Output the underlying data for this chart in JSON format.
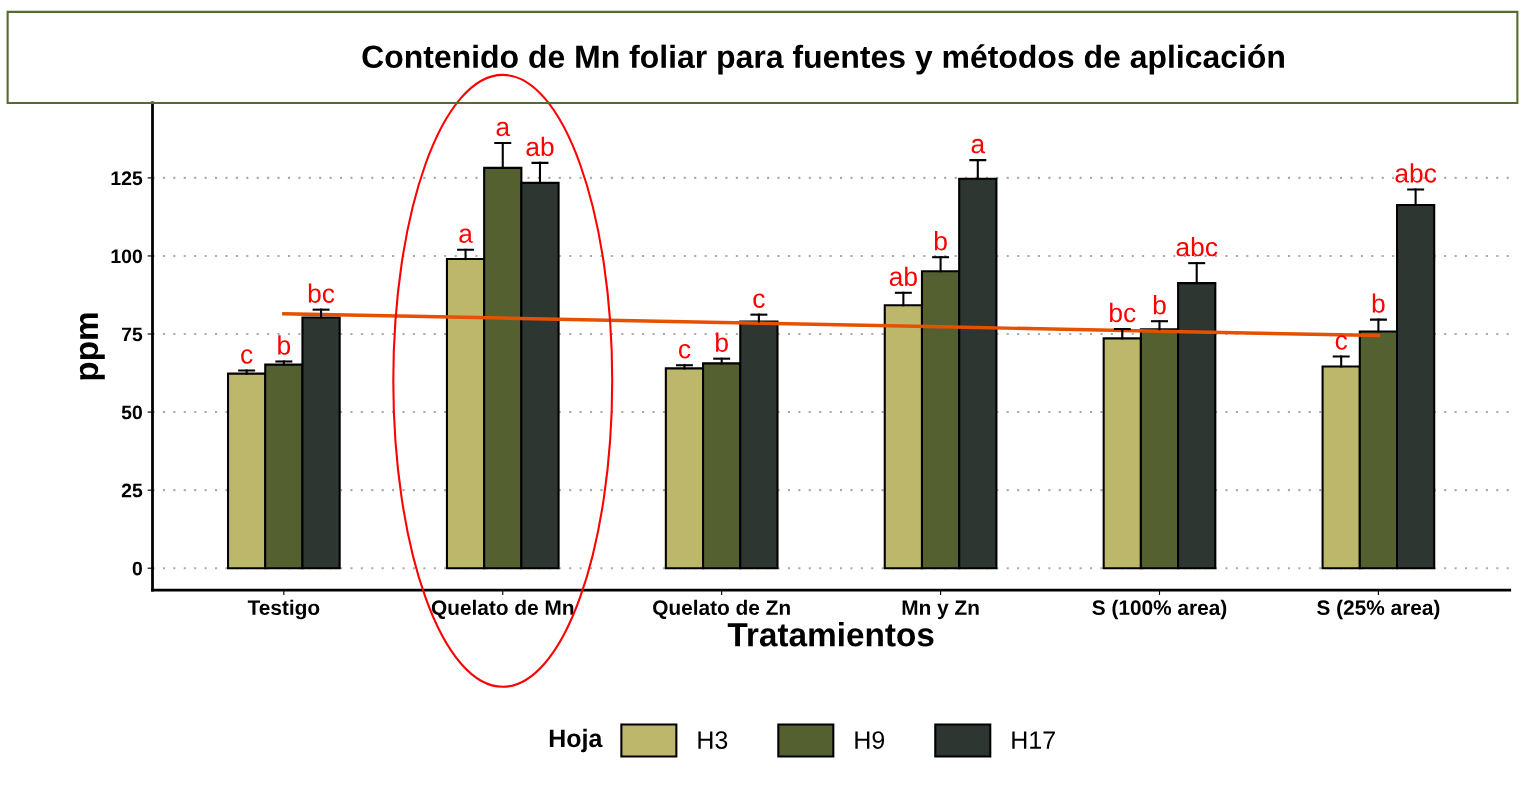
{
  "chart_data": {
    "type": "bar",
    "title": "Contenido de Mn foliar para fuentes y métodos de aplicación",
    "xlabel": "Tratamientos",
    "ylabel": "ppm",
    "legend_title": "Hoja",
    "legend": "bottom",
    "grid": "y",
    "categories": [
      "Testigo",
      "Quelato de Mn",
      "Quelato de Zn",
      "Mn y Zn",
      "S (100% area)",
      "S (25% area)"
    ],
    "ylim": [
      -7,
      149
    ],
    "yticks": [
      0,
      25,
      50,
      75,
      100,
      125
    ],
    "series": [
      {
        "name": "H3",
        "color": "#bdb76b",
        "values": [
          62.3,
          99,
          64,
          84.2,
          73.6,
          64.6
        ],
        "errors": [
          [
            62.3,
            63.3
          ],
          [
            99,
            102
          ],
          [
            64,
            65
          ],
          [
            84.2,
            88.2
          ],
          [
            73.6,
            76.6
          ],
          [
            64.6,
            67.8
          ]
        ],
        "value_labels": [
          "c",
          "a",
          "c",
          "ab",
          "bc",
          "c"
        ]
      },
      {
        "name": "H9",
        "color": "#556030",
        "values": [
          65.2,
          128.2,
          65.6,
          95.1,
          76.5,
          75.8
        ],
        "errors": [
          [
            65.2,
            66.2
          ],
          [
            128.2,
            136.2
          ],
          [
            65.6,
            67.1
          ],
          [
            95.1,
            99.6
          ],
          [
            76.5,
            79.1
          ],
          [
            75.8,
            79.6
          ]
        ],
        "value_labels": [
          "b",
          "a",
          "b",
          "b",
          "b",
          "b"
        ]
      },
      {
        "name": "H17",
        "color": "#2d3630",
        "values": [
          80.3,
          123.4,
          79,
          124.7,
          91.3,
          116.3
        ],
        "errors": [
          [
            80.3,
            82.8
          ],
          [
            123.4,
            129.8
          ],
          [
            79,
            81.2
          ],
          [
            124.7,
            130.7
          ],
          [
            91.3,
            97.7
          ],
          [
            116.3,
            121.3
          ]
        ],
        "value_labels": [
          "bc",
          "ab",
          "c",
          "a",
          "abc",
          "abc"
        ]
      },
      {
        "type": "line",
        "color": "#e65100",
        "values": [
          81.5,
          80.1,
          78.7,
          77.3,
          75.9,
          74.5
        ]
      }
    ]
  }
}
